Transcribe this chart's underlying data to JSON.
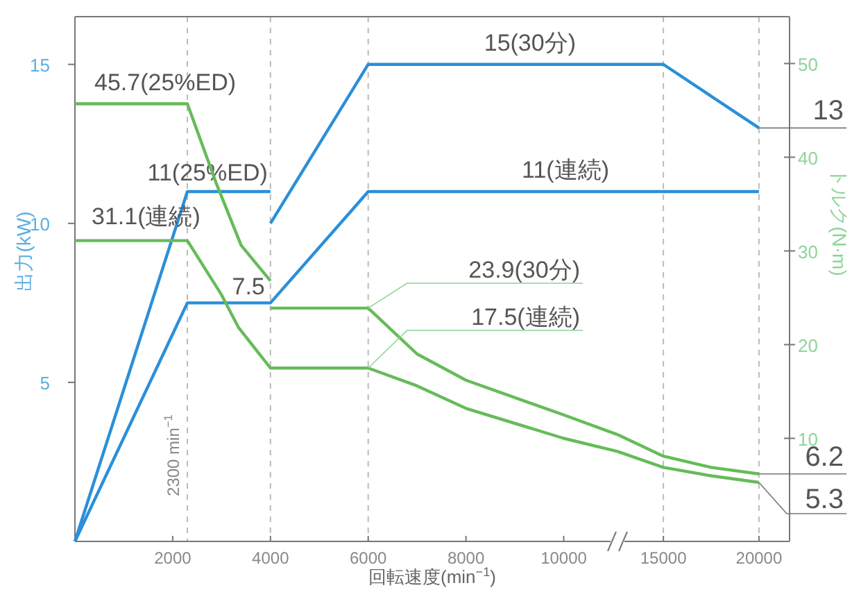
{
  "chart_data": [
    {
      "type": "line",
      "xlabel": "回転速度(min$^{−1}$)",
      "ylabel": "出力(kW)",
      "xlim": [
        0,
        11100
      ],
      "xticks": [
        2000,
        4000,
        6000,
        8000,
        10000
      ],
      "ylim": [
        0,
        16.5
      ],
      "yticks": [
        5,
        10,
        15
      ],
      "y2lim": [
        -1,
        55
      ],
      "grid": false,
      "marker": "none",
      "line_style": "solid",
      "ref_lines": [
        {
          "axis": "x",
          "value": 2300,
          "label": "2300 min$^{−1}$",
          "line_style": "dashed",
          "color": "#bbbbbb"
        },
        {
          "axis": "x",
          "value": 4000,
          "label": null,
          "line_style": "dashed",
          "color": "#bbbbbb"
        },
        {
          "axis": "x",
          "value": 6000,
          "label": null,
          "line_style": "dashed",
          "color": "#bbbbbb"
        }
      ],
      "series": [
        {
          "color": "#2b8fd9",
          "x": [
            0,
            2300,
            4000
          ],
          "values": [
            0,
            11,
            11
          ],
          "value_labels": [
            null,
            null,
            "11(25%ED)"
          ]
        },
        {
          "color": "#2b8fd9",
          "x": [
            4000,
            6000,
            11100
          ],
          "values": [
            10,
            15,
            15
          ],
          "value_labels": [
            null,
            null,
            "15(30分)"
          ]
        },
        {
          "color": "#2b8fd9",
          "x": [
            0,
            2300,
            4000,
            6000,
            11100
          ],
          "values": [
            0,
            7.5,
            7.5,
            11,
            11
          ],
          "value_labels": [
            null,
            null,
            "7.5",
            null,
            "11(連続)"
          ]
        },
        {
          "color": "#66bb5a",
          "axis": "y2",
          "x": [
            0,
            2300,
            2900,
            3400,
            4000
          ],
          "values": [
            45.7,
            45.7,
            37.1,
            30.6,
            26.8
          ],
          "value_labels": [
            "45.7(25%ED)",
            null,
            null,
            null,
            null
          ]
        },
        {
          "color": "#66bb5a",
          "axis": "y2",
          "x": [
            4000,
            6000,
            7000,
            8000,
            10000,
            11100
          ],
          "values": [
            23.9,
            23.9,
            19.0,
            16.2,
            12.5,
            10.4
          ],
          "value_labels": [
            null,
            "23.9(30分)",
            null,
            null,
            null,
            null
          ]
        },
        {
          "color": "#66bb5a",
          "axis": "y2",
          "x": [
            0,
            2300,
            3000,
            3350,
            4000,
            6000,
            7000,
            8000,
            10000,
            11100
          ],
          "values": [
            31.1,
            31.1,
            25.3,
            21.8,
            17.5,
            17.5,
            15.6,
            13.2,
            10.0,
            8.6
          ],
          "value_labels": [
            "31.1(連続)",
            null,
            null,
            null,
            null,
            "17.5(連続)",
            null,
            null,
            null,
            null
          ]
        }
      ]
    },
    {
      "type": "line",
      "y2label": "トルク(N·m)",
      "xlim": [
        12600,
        21600
      ],
      "xticks": [
        15000,
        20000
      ],
      "ylim": [
        0,
        16.5
      ],
      "y2lim": [
        -1,
        55
      ],
      "y2ticks": [
        10,
        20,
        30,
        40,
        50
      ],
      "grid": false,
      "marker": "none",
      "line_style": "solid",
      "ref_lines": [
        {
          "axis": "x",
          "value": 15000,
          "label": null,
          "line_style": "dashed",
          "color": "#bbbbbb"
        },
        {
          "axis": "x",
          "value": 20000,
          "label": null,
          "line_style": "dashed",
          "color": "#bbbbbb"
        }
      ],
      "series": [
        {
          "color": "#2b8fd9",
          "x": [
            12600,
            15000,
            20000
          ],
          "values": [
            15,
            15,
            13
          ],
          "value_labels": [
            null,
            null,
            "13"
          ]
        },
        {
          "color": "#2b8fd9",
          "x": [
            12600,
            20000
          ],
          "values": [
            11,
            11
          ]
        },
        {
          "color": "#66bb5a",
          "axis": "y2",
          "x": [
            12600,
            15000,
            17500,
            20000
          ],
          "values": [
            10.4,
            8.1,
            6.9,
            6.2
          ],
          "value_labels": [
            null,
            null,
            null,
            "6.2"
          ]
        },
        {
          "color": "#66bb5a",
          "axis": "y2",
          "x": [
            12600,
            15000,
            17500,
            20000
          ],
          "values": [
            8.6,
            6.9,
            6.0,
            5.3
          ],
          "value_labels": [
            null,
            null,
            null,
            "5.3"
          ]
        }
      ]
    }
  ]
}
